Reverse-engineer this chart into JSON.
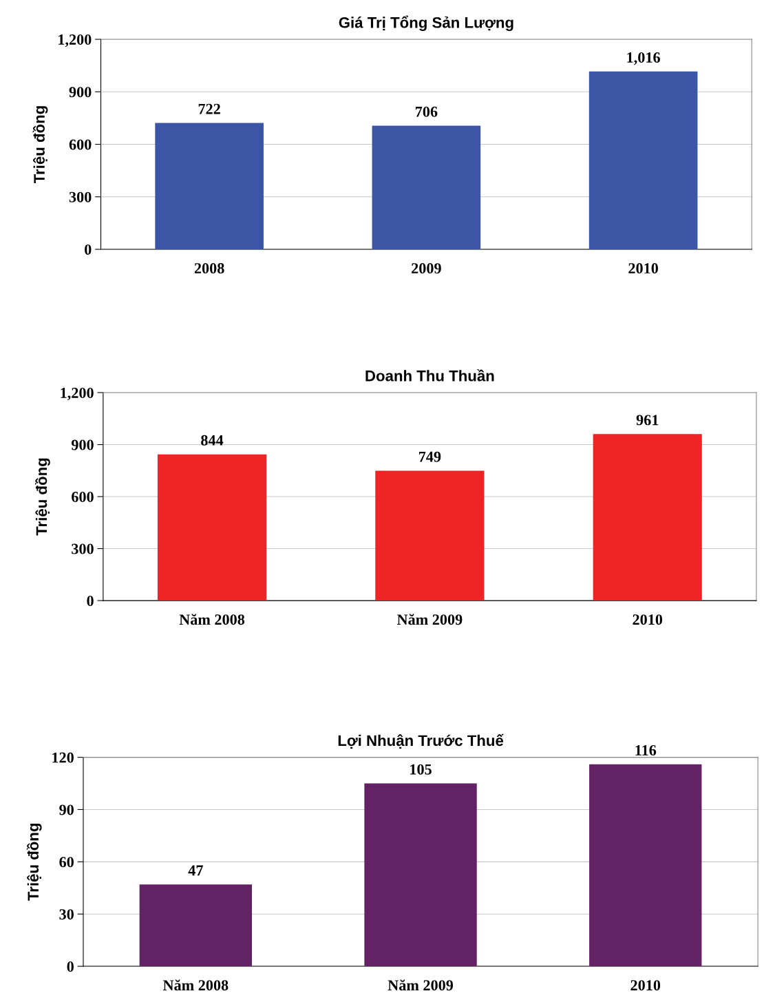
{
  "chart_data": [
    {
      "type": "bar",
      "title": "Giá Trị Tổng Sản Lượng",
      "ylabel": "Triệu đồng",
      "categories": [
        "2008",
        "2009",
        "2010"
      ],
      "values": [
        722,
        706,
        1016
      ],
      "value_labels": [
        "722",
        "706",
        "1,016"
      ],
      "color": "#3c55a5",
      "ylim": [
        0,
        1200
      ],
      "yticks": [
        0,
        300,
        600,
        900,
        {
          "value": 1200,
          "label": "1,200"
        }
      ],
      "grid": "y"
    },
    {
      "type": "bar",
      "title": "Doanh Thu Thuần",
      "ylabel": "Triệu đồng",
      "categories": [
        "Năm 2008",
        "Năm 2009",
        "2010"
      ],
      "values": [
        844,
        749,
        961
      ],
      "value_labels": [
        "844",
        "749",
        "961"
      ],
      "color": "#ee2427",
      "ylim": [
        0,
        1200
      ],
      "yticks": [
        0,
        300,
        600,
        900,
        {
          "value": 1200,
          "label": "1,200"
        }
      ],
      "grid": "y"
    },
    {
      "type": "bar",
      "title": "Lợi Nhuận Trước Thuế",
      "ylabel": "Triệu đồng",
      "categories": [
        "Năm 2008",
        "Năm 2009",
        "2010"
      ],
      "values": [
        47,
        105,
        116
      ],
      "value_labels": [
        "47",
        "105",
        "116"
      ],
      "color": "#632263",
      "ylim": [
        0,
        120
      ],
      "yticks": [
        0,
        30,
        60,
        90,
        120
      ],
      "grid": "y"
    }
  ]
}
